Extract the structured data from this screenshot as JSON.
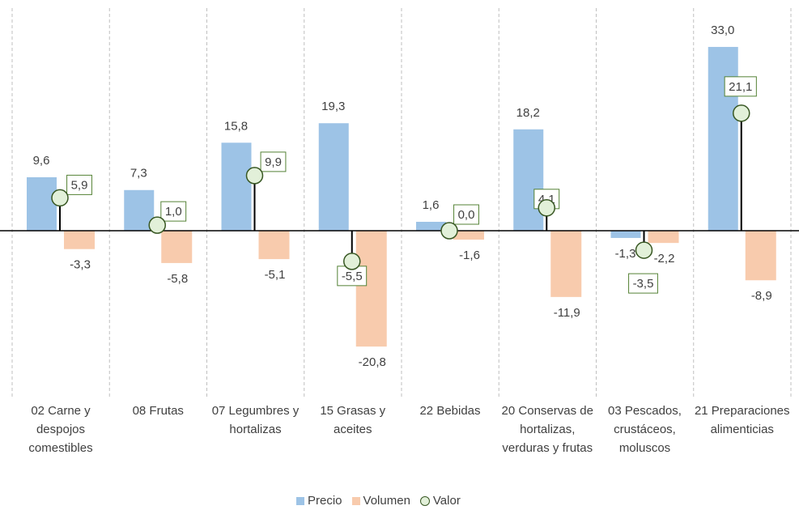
{
  "chart_data": {
    "type": "bar",
    "categories": [
      "02 Carne y despojos comestibles",
      "08 Frutas",
      "07 Legumbres y hortalizas",
      "15 Grasas y aceites",
      "22 Bebidas",
      "20 Conservas de hortalizas, verduras y frutas",
      "03 Pescados, crustáceos, moluscos",
      "21 Preparaciones alimenticias"
    ],
    "series": [
      {
        "name": "Precio",
        "color": "#9dc3e6",
        "values": [
          9.6,
          7.3,
          15.8,
          19.3,
          1.6,
          18.2,
          -1.3,
          33.0
        ],
        "value_labels": [
          "9,6",
          "7,3",
          "15,8",
          "19,3",
          "1,6",
          "18,2",
          "-1,3",
          "33,0"
        ]
      },
      {
        "name": "Volumen",
        "color": "#f8cbad",
        "values": [
          -3.3,
          -5.8,
          -5.1,
          -20.8,
          -1.6,
          -11.9,
          -2.2,
          -8.9
        ],
        "value_labels": [
          "-3,3",
          "-5,8",
          "-5,1",
          "-20,8",
          "-1,6",
          "-11,9",
          "-2,2",
          "-8,9"
        ]
      },
      {
        "name": "Valor",
        "color": "#e2f0d9",
        "values": [
          5.9,
          1.0,
          9.9,
          -5.5,
          0.0,
          4.1,
          -3.5,
          21.1
        ],
        "value_labels": [
          "5,9",
          "1,0",
          "9,9",
          "-5,5",
          "0,0",
          "4,1",
          "-3,5",
          "21,1"
        ]
      }
    ]
  }
}
